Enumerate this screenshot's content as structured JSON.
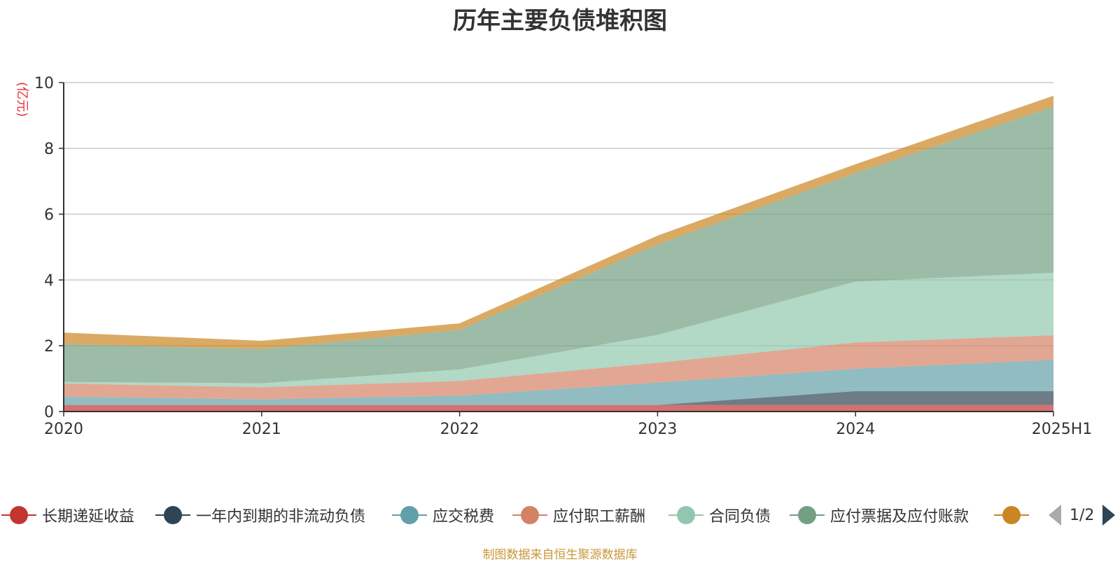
{
  "chart_data": {
    "type": "area",
    "stacked": true,
    "title": "历年主要负债堆积图",
    "ylabel": "(亿元)",
    "xlabel": "",
    "categories": [
      "2020",
      "2021",
      "2022",
      "2023",
      "2024",
      "2025H1"
    ],
    "ylim": [
      0,
      10
    ],
    "yticks": [
      0,
      2,
      4,
      6,
      8,
      10
    ],
    "grid": true,
    "legend_position": "bottom",
    "series": [
      {
        "name": "长期递延收益",
        "color": "#c23531",
        "values": [
          0.2,
          0.2,
          0.2,
          0.2,
          0.2,
          0.2
        ]
      },
      {
        "name": "一年内到期的非流动负债",
        "color": "#2f4554",
        "values": [
          0,
          0,
          0,
          0,
          0.42,
          0.42
        ]
      },
      {
        "name": "应交税费",
        "color": "#61a0a8",
        "values": [
          0.25,
          0.17,
          0.28,
          0.68,
          0.68,
          0.95
        ]
      },
      {
        "name": "应付职工薪酬",
        "color": "#d48265",
        "values": [
          0.4,
          0.37,
          0.45,
          0.6,
          0.8,
          0.75
        ]
      },
      {
        "name": "合同负债",
        "color": "#91c7ae",
        "values": [
          0.05,
          0.12,
          0.35,
          0.85,
          1.85,
          1.9
        ]
      },
      {
        "name": "应付票据及应付账款",
        "color": "#749f83",
        "values": [
          1.15,
          1.04,
          1.2,
          2.75,
          3.3,
          5.05
        ]
      },
      {
        "name": "",
        "color": "#ca8622",
        "values": [
          0.35,
          0.25,
          0.2,
          0.27,
          0.27,
          0.33
        ]
      }
    ]
  },
  "legend": {
    "pager_text": "1/2"
  },
  "source_note": "制图数据来自恒生聚源数据库",
  "colors": {
    "axis": "#333333",
    "grid": "#cccccc",
    "ylabel": "#e5323e",
    "source_note": "#c9973a"
  }
}
